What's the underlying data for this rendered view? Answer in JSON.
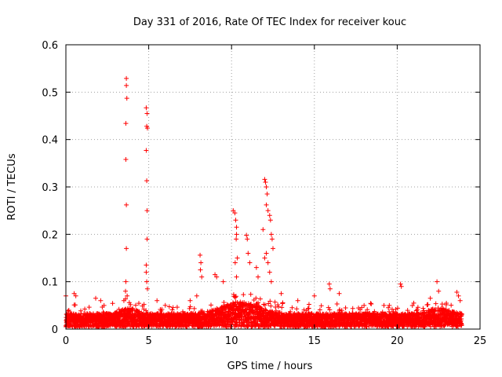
{
  "chart_data": {
    "type": "scatter",
    "title": "Day 331 of 2016, Rate Of TEC Index for receiver kouc",
    "xlabel": "GPS time / hours",
    "ylabel": "ROTI / TECUs",
    "xlim": [
      0,
      25
    ],
    "ylim": [
      0,
      0.6
    ],
    "xticks": [
      "0",
      "5",
      "10",
      "15",
      "20",
      "25"
    ],
    "yticks": [
      "0",
      "0.1",
      "0.2",
      "0.3",
      "0.4",
      "0.5",
      "0.6"
    ],
    "grid": true,
    "marker": "+",
    "color": "#ff0000",
    "series": [
      {
        "name": "ROTI",
        "x": [
          3.65,
          3.65,
          3.68,
          3.62,
          3.62,
          3.65,
          3.65,
          3.62,
          3.6,
          3.7,
          4.85,
          4.9,
          4.88,
          4.92,
          4.85,
          4.88,
          4.9,
          4.9,
          4.85,
          4.85,
          4.88,
          4.92,
          8.1,
          8.15,
          8.12,
          8.2,
          9.0,
          9.1,
          9.5,
          10.1,
          10.2,
          10.25,
          10.3,
          10.3,
          10.28,
          10.35,
          10.22,
          10.3,
          10.9,
          10.95,
          11.0,
          11.1,
          11.5,
          11.6,
          11.9,
          12.0,
          12.05,
          12.1,
          12.15,
          12.1,
          12.2,
          12.3,
          12.35,
          12.4,
          12.45,
          12.5,
          12.1,
          12.0,
          12.2,
          12.3,
          12.4,
          15.0,
          15.9,
          15.95,
          16.5,
          20.2,
          20.25,
          22.4,
          22.5,
          23.6,
          23.7,
          0.0,
          0.5,
          0.6,
          1.8,
          2.1,
          3.5,
          5.5,
          7.5,
          7.9,
          13.0,
          14.0,
          18.0,
          19.2,
          21.0,
          22.0,
          23.8
        ],
        "y": [
          0.529,
          0.514,
          0.487,
          0.434,
          0.358,
          0.262,
          0.17,
          0.1,
          0.08,
          0.07,
          0.467,
          0.455,
          0.428,
          0.424,
          0.377,
          0.313,
          0.25,
          0.19,
          0.135,
          0.12,
          0.1,
          0.085,
          0.156,
          0.14,
          0.125,
          0.11,
          0.115,
          0.11,
          0.1,
          0.25,
          0.245,
          0.23,
          0.215,
          0.2,
          0.19,
          0.15,
          0.14,
          0.11,
          0.198,
          0.19,
          0.16,
          0.14,
          0.13,
          0.11,
          0.21,
          0.316,
          0.31,
          0.3,
          0.285,
          0.262,
          0.25,
          0.24,
          0.23,
          0.2,
          0.19,
          0.17,
          0.16,
          0.15,
          0.14,
          0.12,
          0.1,
          0.07,
          0.095,
          0.085,
          0.075,
          0.095,
          0.09,
          0.1,
          0.08,
          0.078,
          0.07,
          0.07,
          0.075,
          0.07,
          0.065,
          0.06,
          0.06,
          0.06,
          0.06,
          0.07,
          0.075,
          0.06,
          0.05,
          0.05,
          0.055,
          0.065,
          0.06
        ]
      }
    ],
    "baseline_band": {
      "description": "dense noise floor of points",
      "ymin": 0.005,
      "ymax": 0.05,
      "xmin": 0.0,
      "xmax": 23.9
    }
  }
}
